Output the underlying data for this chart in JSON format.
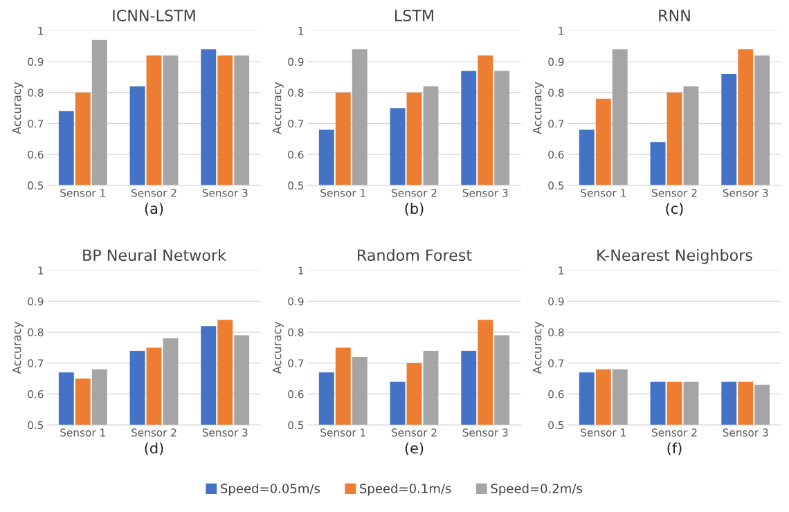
{
  "chart_data": [
    {
      "type": "bar",
      "title": "ICNN-LSTM",
      "xlabel": "(a)",
      "ylabel": "Accuracy",
      "categories": [
        "Sensor 1",
        "Sensor 2",
        "Sensor 3"
      ],
      "ylim": [
        0.5,
        1
      ],
      "yticks": [
        0.5,
        0.6,
        0.7,
        0.8,
        0.9,
        1
      ],
      "grid": "y",
      "legend": "bottom",
      "series": [
        {
          "name": "Speed=0.05m/s",
          "color": "#4472c4",
          "values": [
            0.74,
            0.82,
            0.94
          ]
        },
        {
          "name": "Speed=0.1m/s",
          "color": "#ed7d31",
          "values": [
            0.8,
            0.92,
            0.92
          ]
        },
        {
          "name": "Speed=0.2m/s",
          "color": "#a5a5a5",
          "values": [
            0.97,
            0.92,
            0.92
          ]
        }
      ]
    },
    {
      "type": "bar",
      "title": "LSTM",
      "xlabel": "(b)",
      "ylabel": "Accuracy",
      "categories": [
        "Sensor 1",
        "Sensor 2",
        "Sensor 3"
      ],
      "ylim": [
        0.5,
        1
      ],
      "yticks": [
        0.5,
        0.6,
        0.7,
        0.8,
        0.9,
        1
      ],
      "grid": "y",
      "series": [
        {
          "color": "#4472c4",
          "values": [
            0.68,
            0.75,
            0.87
          ]
        },
        {
          "color": "#ed7d31",
          "values": [
            0.8,
            0.8,
            0.92
          ]
        },
        {
          "color": "#a5a5a5",
          "values": [
            0.94,
            0.82,
            0.87
          ]
        }
      ]
    },
    {
      "type": "bar",
      "title": "RNN",
      "xlabel": "(c)",
      "ylabel": "Accuracy",
      "categories": [
        "Sensor 1",
        "Sensor 2",
        "Sensor 3"
      ],
      "ylim": [
        0.5,
        1
      ],
      "yticks": [
        0.5,
        0.6,
        0.7,
        0.8,
        0.9,
        1
      ],
      "grid": "y",
      "series": [
        {
          "color": "#4472c4",
          "values": [
            0.68,
            0.64,
            0.86
          ]
        },
        {
          "color": "#ed7d31",
          "values": [
            0.78,
            0.8,
            0.94
          ]
        },
        {
          "color": "#a5a5a5",
          "values": [
            0.94,
            0.82,
            0.92
          ]
        }
      ]
    },
    {
      "type": "bar",
      "title": "BP Neural Network",
      "xlabel": "(d)",
      "ylabel": "Accuracy",
      "categories": [
        "Sensor 1",
        "Sensor 2",
        "Sensor 3"
      ],
      "ylim": [
        0.5,
        1
      ],
      "yticks": [
        0.5,
        0.6,
        0.7,
        0.8,
        0.9,
        1
      ],
      "grid": "y",
      "series": [
        {
          "color": "#4472c4",
          "values": [
            0.67,
            0.74,
            0.82
          ]
        },
        {
          "color": "#ed7d31",
          "values": [
            0.65,
            0.75,
            0.84
          ]
        },
        {
          "color": "#a5a5a5",
          "values": [
            0.68,
            0.78,
            0.79
          ]
        }
      ]
    },
    {
      "type": "bar",
      "title": "Random Forest",
      "xlabel": "(e)",
      "ylabel": "Accuracy",
      "categories": [
        "Sensor 1",
        "Sensor 2",
        "Sensor 3"
      ],
      "ylim": [
        0.5,
        1
      ],
      "yticks": [
        0.5,
        0.6,
        0.7,
        0.8,
        0.9,
        1
      ],
      "grid": "y",
      "series": [
        {
          "color": "#4472c4",
          "values": [
            0.67,
            0.64,
            0.74
          ]
        },
        {
          "color": "#ed7d31",
          "values": [
            0.75,
            0.7,
            0.84
          ]
        },
        {
          "color": "#a5a5a5",
          "values": [
            0.72,
            0.74,
            0.79
          ]
        }
      ]
    },
    {
      "type": "bar",
      "title": "K-Nearest Neighbors",
      "xlabel": "(f)",
      "ylabel": "Accuracy",
      "categories": [
        "Sensor 1",
        "Sensor 2",
        "Sensor 3"
      ],
      "ylim": [
        0.5,
        1
      ],
      "yticks": [
        0.5,
        0.6,
        0.7,
        0.8,
        0.9,
        1
      ],
      "grid": "y",
      "series": [
        {
          "color": "#4472c4",
          "values": [
            0.67,
            0.64,
            0.64
          ]
        },
        {
          "color": "#ed7d31",
          "values": [
            0.68,
            0.64,
            0.64
          ]
        },
        {
          "color": "#a5a5a5",
          "values": [
            0.68,
            0.64,
            0.63
          ]
        }
      ]
    }
  ]
}
